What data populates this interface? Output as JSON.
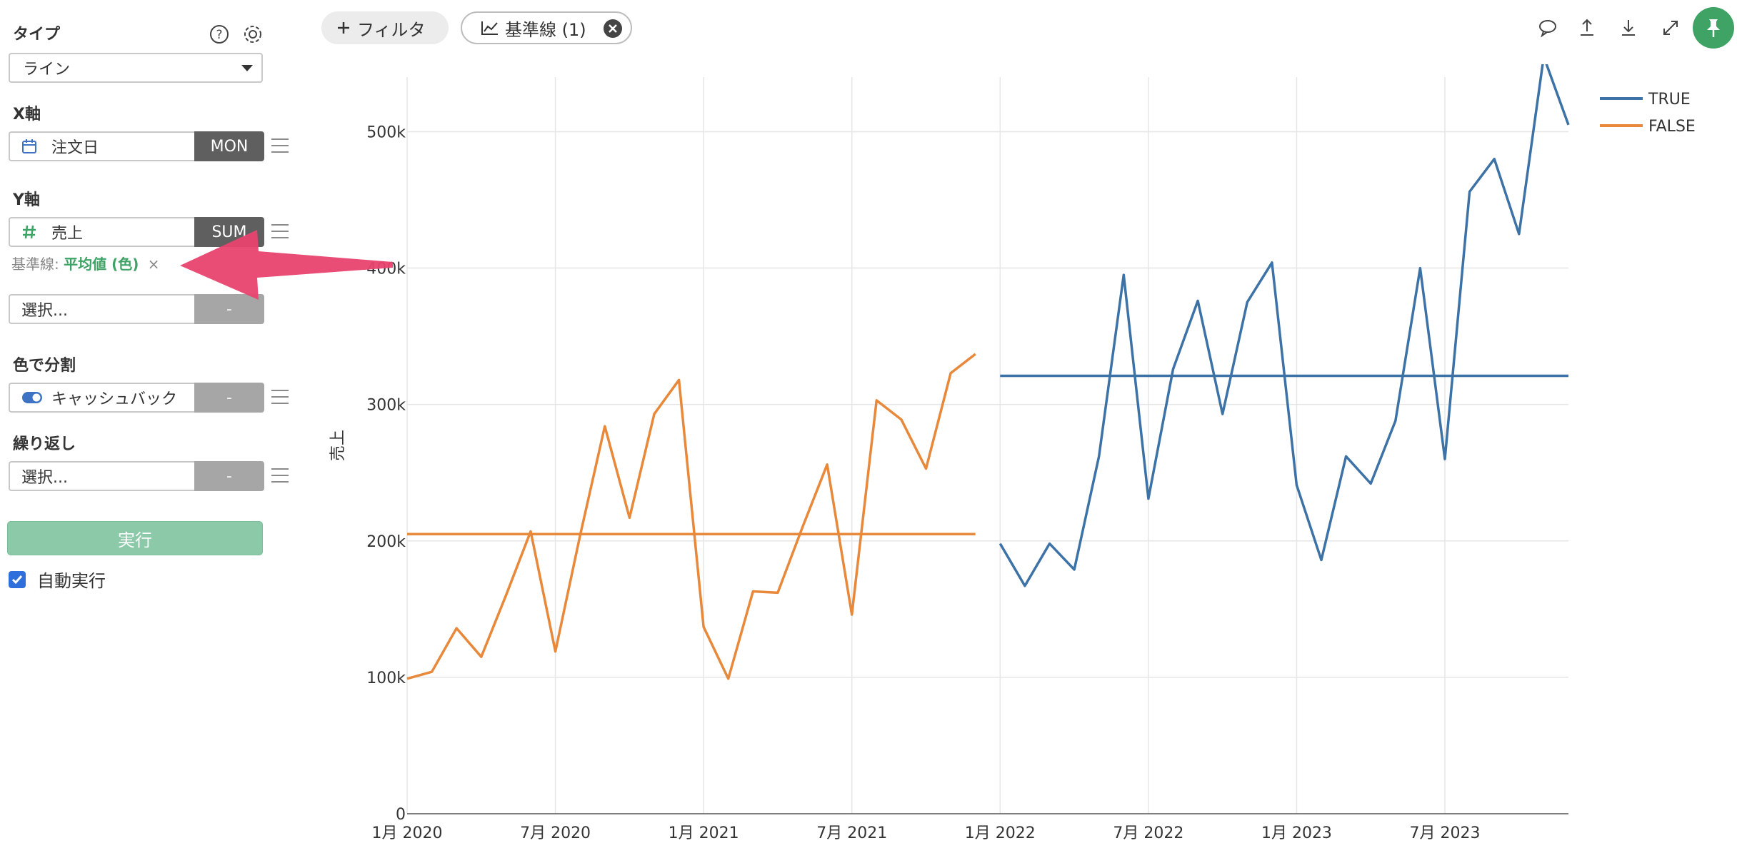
{
  "sidebar": {
    "type_label": "タイプ",
    "type_value": "ライン",
    "x_label": "X軸",
    "x_field": "注文日",
    "x_agg": "MON",
    "y_label": "Y軸",
    "y_field": "売上",
    "y_agg": "SUM",
    "refline_prefix": "基準線:",
    "refline_value": "平均値 (色)",
    "refline_remove": "×",
    "y2_placeholder": "選択...",
    "y2_agg": "-",
    "color_label": "色で分割",
    "color_field": "キャッシュバック",
    "color_agg": "-",
    "repeat_label": "繰り返し",
    "repeat_placeholder": "選択...",
    "repeat_agg": "-",
    "run_label": "実行",
    "auto_run_label": "自動実行"
  },
  "toolbar": {
    "filter_label": "フィルタ",
    "refline_chip_label": "基準線 (1)"
  },
  "colors": {
    "true_series": "#3d72a6",
    "false_series": "#e8883a",
    "accent_green": "#3fa366",
    "annotation_arrow": "#e8436f"
  },
  "icons": [
    "help-icon",
    "gear-icon",
    "calendar-icon",
    "hash-icon",
    "toggle-icon",
    "plus-icon",
    "line-chart-icon",
    "close-icon",
    "comment-icon",
    "upload-icon",
    "download-icon",
    "expand-icon",
    "pin-icon"
  ],
  "chart_data": {
    "type": "line",
    "ylabel": "売上",
    "xlabel": "",
    "ylim": [
      0,
      540000
    ],
    "y_ticks": [
      "0",
      "100k",
      "200k",
      "300k",
      "400k",
      "500k"
    ],
    "y_tick_values": [
      0,
      100000,
      200000,
      300000,
      400000,
      500000
    ],
    "x_range": [
      "2020-01",
      "2023-12"
    ],
    "x_ticks": [
      "1月 2020",
      "7月 2020",
      "1月 2021",
      "7月 2021",
      "1月 2022",
      "7月 2022",
      "1月 2023",
      "7月 2023"
    ],
    "x_tick_months": [
      "2020-01",
      "2020-07",
      "2021-01",
      "2021-07",
      "2022-01",
      "2022-07",
      "2023-01",
      "2023-07"
    ],
    "grid": true,
    "legend_position": "top-right",
    "series": [
      {
        "name": "TRUE",
        "color": "#3d72a6",
        "start": "2022-01",
        "values": [
          198000,
          167000,
          198000,
          179000,
          262000,
          395000,
          231000,
          326000,
          376000,
          293000,
          375000,
          404000,
          241000,
          186000,
          262000,
          242000,
          288000,
          400000,
          260000,
          456000,
          480000,
          425000,
          555000,
          505000
        ],
        "reference_mean": 321000
      },
      {
        "name": "FALSE",
        "color": "#e8883a",
        "start": "2020-01",
        "values": [
          99000,
          104000,
          136000,
          115000,
          160000,
          207000,
          119000,
          204000,
          284000,
          217000,
          293000,
          318000,
          137000,
          99000,
          163000,
          162000,
          210000,
          256000,
          146000,
          303000,
          289000,
          253000,
          323000,
          337000
        ],
        "reference_mean": 205000
      }
    ]
  }
}
